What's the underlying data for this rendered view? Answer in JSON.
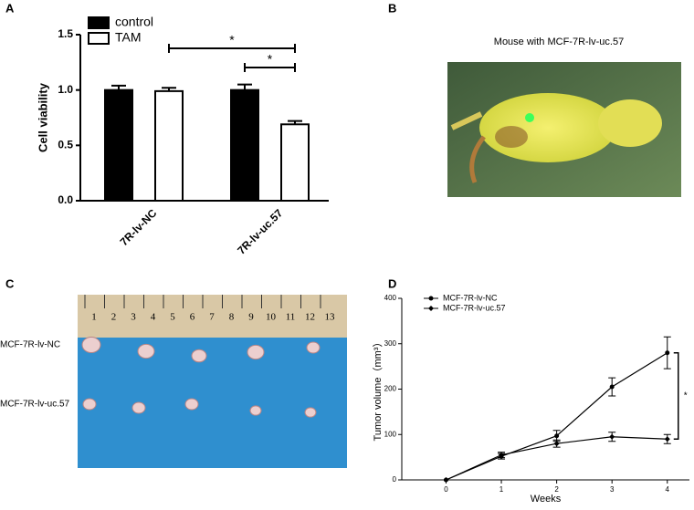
{
  "panel_labels": [
    "A",
    "B",
    "C",
    "D"
  ],
  "chart_data": [
    {
      "type": "bar",
      "ylabel": "Cell viability",
      "categories": [
        "7R-lv-NC",
        "7R-lv-uc.57"
      ],
      "series": [
        {
          "name": "control",
          "color": "#000000",
          "values": [
            1.0,
            1.0
          ],
          "errors": [
            0.04,
            0.05
          ]
        },
        {
          "name": "TAM",
          "color": "#ffffff",
          "values": [
            0.99,
            0.69
          ],
          "errors": [
            0.03,
            0.03
          ]
        }
      ],
      "ylim": [
        0,
        1.5
      ],
      "yticks": [
        {
          "value": 0,
          "label": "0.0"
        },
        0.5,
        {
          "value": 1,
          "label": "1.0"
        },
        1.5
      ],
      "annotations": [
        "*",
        "*"
      ]
    },
    {
      "type": "line",
      "xlabel": "Weeks",
      "ylabel": "Tumor volume（mm³）",
      "x": [
        0,
        1,
        2,
        3,
        4
      ],
      "series": [
        {
          "name": "MCF-7R-lv-NC",
          "color": "#000000",
          "values": [
            0,
            52,
            97,
            205,
            280
          ],
          "errors": [
            0,
            6,
            12,
            20,
            35
          ]
        },
        {
          "name": "MCF-7R-lv-uc.57",
          "color": "#000000",
          "values": [
            0,
            55,
            80,
            95,
            90
          ],
          "errors": [
            0,
            6,
            8,
            10,
            10
          ]
        }
      ],
      "xlim": [
        -0.8,
        4.4
      ],
      "xticks": [
        0,
        1,
        2,
        3,
        4
      ],
      "ylim": [
        0,
        400
      ],
      "yticks": [
        0,
        100,
        200,
        300,
        400
      ],
      "annotations": [
        "*"
      ]
    }
  ],
  "photo_b": {
    "title": "Mouse with MCF-7R-lv-uc.57"
  },
  "photo_c": {
    "row_labels": [
      "MCF-7R-lv-NC",
      "MCF-7R-lv-uc.57"
    ],
    "ruler_labels": [
      "1",
      "2",
      "3",
      "4",
      "5",
      "6",
      "7",
      "8",
      "9",
      "10",
      "11",
      "12",
      "13"
    ]
  }
}
